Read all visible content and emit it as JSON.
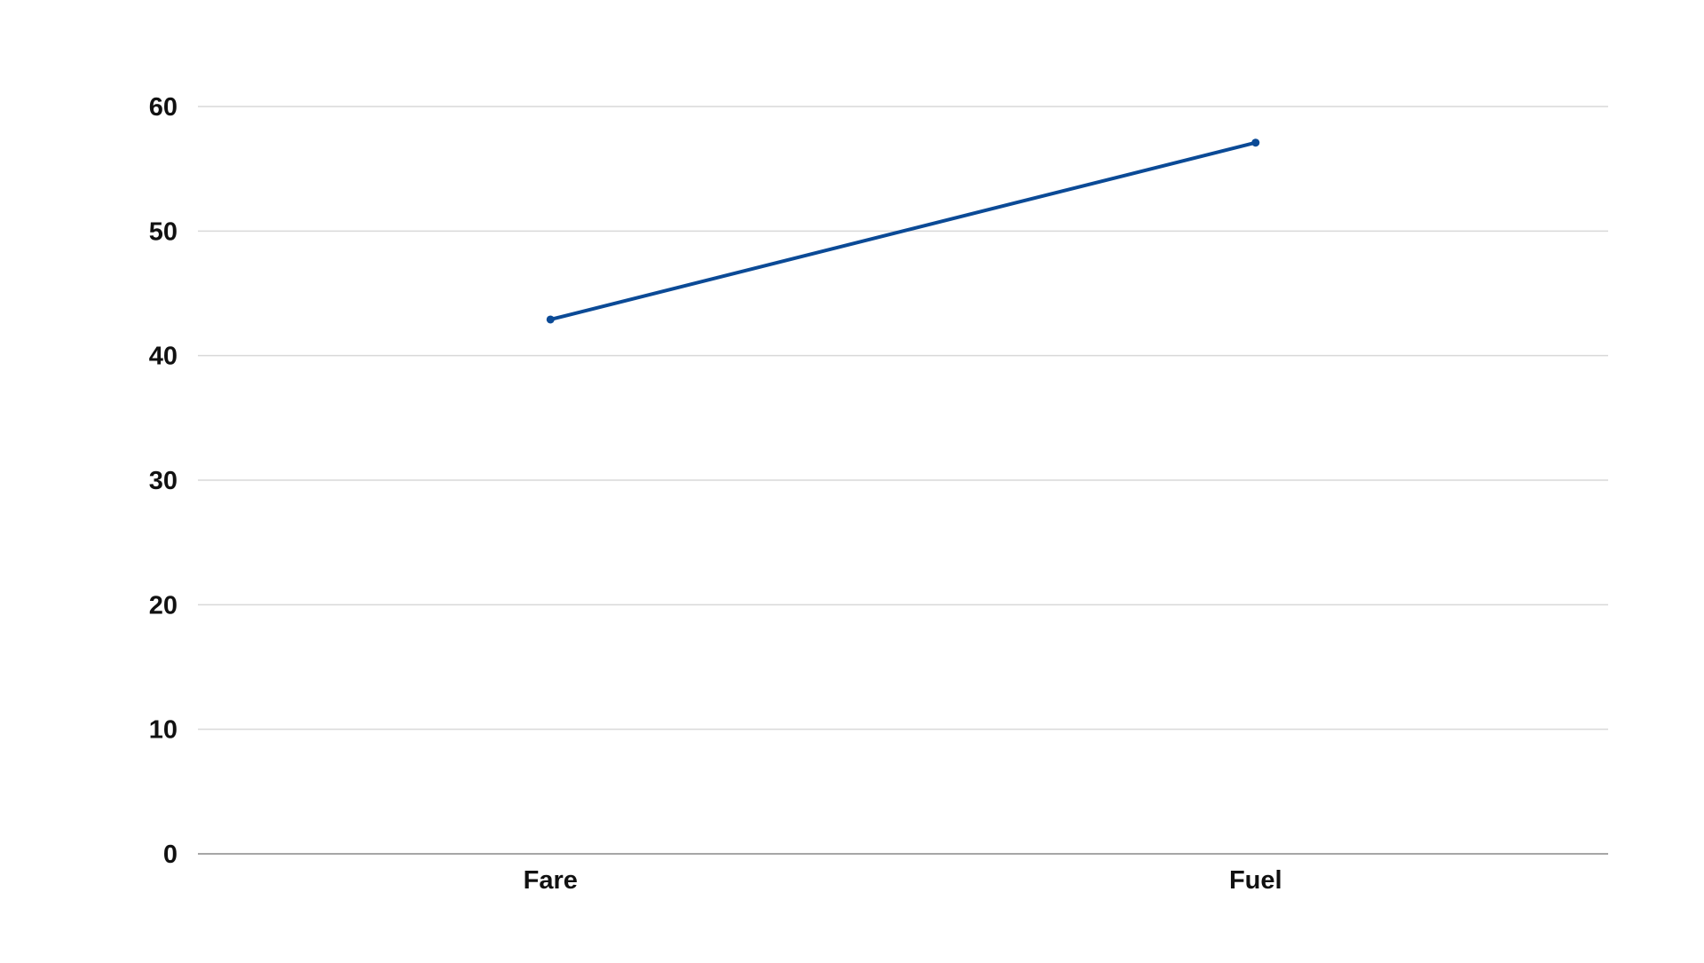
{
  "chart_data": {
    "type": "line",
    "title": "",
    "xlabel": "",
    "ylabel": "",
    "categories": [
      "Fare",
      "Fuel"
    ],
    "series": [
      {
        "values": [
          42.9,
          57.1
        ],
        "color": "#0b4a96"
      }
    ],
    "ylim": [
      0,
      60
    ],
    "yticks": [
      0,
      10,
      20,
      30,
      40,
      50,
      60
    ],
    "grid": true,
    "legend": "none"
  }
}
